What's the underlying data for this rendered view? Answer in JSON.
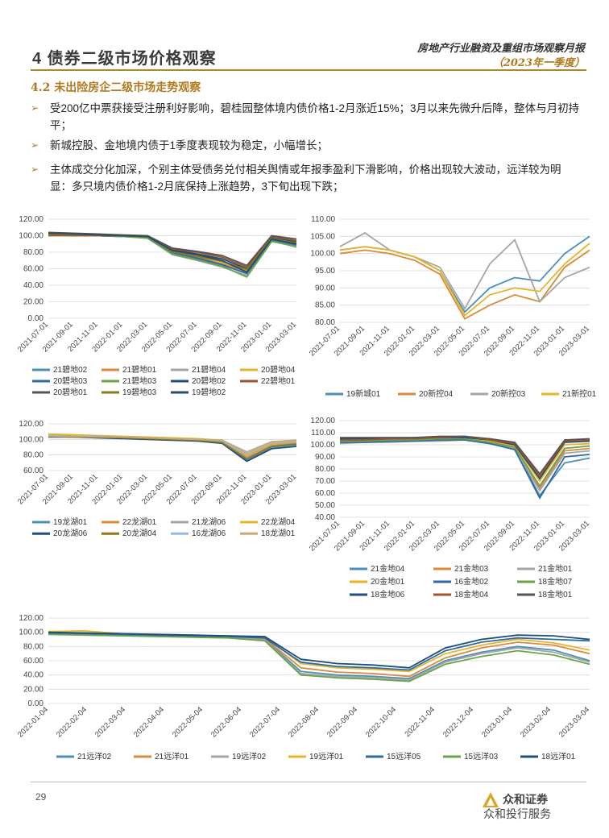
{
  "header": {
    "title": "4 债券二级市场价格观察",
    "right_line1": "房地产行业融资及重组市场观察月报",
    "right_line2": "（2023年一季度）"
  },
  "section": {
    "title": "4.2 未出险房企二级市场走势观察"
  },
  "bullets": [
    {
      "marker": "➢",
      "text": "受200亿中票获接受注册利好影响，碧桂园整体境内债价格1-2月涨近15%；3月以来先微升后降，整体与月初持平；"
    },
    {
      "marker": "➢",
      "text": "新城控股、金地境内债于1季度表现较为稳定，小幅增长；"
    },
    {
      "marker": "➢",
      "text": "主体成交分化加深，个别主体受债务兑付相关舆情或年报季盈利下滑影响，价格出现较大波动，远洋较为明显：多只境内债价格1-2月底保持上涨趋势，3下旬出现下跌；"
    }
  ],
  "footer": {
    "page": "29",
    "brand": "众和证券",
    "watermark": "众和投行服务"
  },
  "chart_data": [
    {
      "type": "line",
      "ylim": [
        0,
        120
      ],
      "yticks": [
        "120.00",
        "100.00",
        "80.00",
        "60.00",
        "40.00",
        "20.00",
        "0.00"
      ],
      "xticks": [
        "2021-07-01",
        "2021-09-01",
        "2021-11-01",
        "2022-01-01",
        "2022-03-01",
        "2022-05-01",
        "2022-07-01",
        "2022-09-01",
        "2022-11-01",
        "2023-01-01",
        "2023-03-01"
      ],
      "series": [
        {
          "name": "21碧地02",
          "color": "#4a90b8",
          "values": [
            101,
            100,
            100,
            99,
            98,
            78,
            72,
            64,
            55,
            95,
            88
          ]
        },
        {
          "name": "21碧地01",
          "color": "#d98a3a",
          "values": [
            102,
            101,
            101,
            100,
            98,
            80,
            74,
            66,
            57,
            96,
            90
          ]
        },
        {
          "name": "21碧地04",
          "color": "#a5a5a5",
          "values": [
            101,
            100,
            100,
            99,
            97,
            77,
            70,
            62,
            52,
            94,
            86
          ]
        },
        {
          "name": "20碧地04",
          "color": "#e6b428",
          "values": [
            103,
            102,
            101,
            100,
            99,
            82,
            76,
            68,
            58,
            97,
            92
          ]
        },
        {
          "name": "20碧地03",
          "color": "#2f6aa6",
          "values": [
            102,
            101,
            100,
            99,
            98,
            79,
            73,
            65,
            54,
            95,
            89
          ]
        },
        {
          "name": "21碧地03",
          "color": "#6aa34a",
          "values": [
            101,
            100,
            100,
            99,
            97,
            78,
            71,
            63,
            50,
            93,
            87
          ]
        },
        {
          "name": "20碧地02",
          "color": "#1f4e79",
          "values": [
            103,
            102,
            101,
            100,
            99,
            83,
            78,
            72,
            60,
            98,
            93
          ]
        },
        {
          "name": "22碧地01",
          "color": "#a0522d",
          "values": [
            100,
            100,
            100,
            100,
            99,
            84,
            80,
            74,
            62,
            99,
            94
          ]
        },
        {
          "name": "20碧地01",
          "color": "#555555",
          "values": [
            104,
            103,
            102,
            101,
            100,
            85,
            81,
            76,
            64,
            100,
            96
          ]
        },
        {
          "name": "19碧地03",
          "color": "#8a7a1a",
          "values": [
            102,
            101,
            101,
            100,
            99,
            81,
            75,
            69,
            59,
            97,
            91
          ]
        },
        {
          "name": "19碧地02",
          "color": "#2a4a6e",
          "values": [
            103,
            102,
            101,
            100,
            99,
            82,
            77,
            70,
            56,
            96,
            90
          ]
        }
      ]
    },
    {
      "type": "line",
      "ylim": [
        80,
        110
      ],
      "yticks": [
        "110.00",
        "105.00",
        "100.00",
        "95.00",
        "90.00",
        "85.00",
        "80.00"
      ],
      "xticks": [
        "2021-07-01",
        "2021-09-01",
        "2021-11-01",
        "2022-01-01",
        "2022-03-01",
        "2022-05-01",
        "2022-07-01",
        "2022-09-01",
        "2022-11-01",
        "2023-01-01",
        "2023-03-01"
      ],
      "series": [
        {
          "name": "19新城01",
          "color": "#4a90b8",
          "values": [
            101,
            102,
            101,
            99,
            95,
            83,
            90,
            93,
            92,
            100,
            105
          ]
        },
        {
          "name": "20新控04",
          "color": "#d98a3a",
          "values": [
            100,
            101,
            100,
            98,
            94,
            81,
            85,
            88,
            86,
            96,
            101
          ]
        },
        {
          "name": "20新控03",
          "color": "#a5a5a5",
          "values": [
            102,
            106,
            101,
            99,
            96,
            84,
            97,
            104,
            86,
            93,
            96
          ]
        },
        {
          "name": "21新控01",
          "color": "#e6b428",
          "values": [
            101,
            102,
            101,
            99,
            95,
            82,
            88,
            90,
            89,
            97,
            103
          ]
        }
      ]
    },
    {
      "type": "line",
      "ylim": [
        60,
        120
      ],
      "yticks": [
        "120.00",
        "100.00",
        "80.00",
        "60.00"
      ],
      "xticks": [
        "2021-07-01",
        "2021-09-01",
        "2021-11-01",
        "2022-01-01",
        "2022-03-01",
        "2022-05-01",
        "2022-07-01",
        "2022-09-01",
        "2022-11-01",
        "2023-01-01",
        "2023-03-01"
      ],
      "series": [
        {
          "name": "19龙湖01",
          "color": "#4a90b8",
          "values": [
            105,
            104,
            103,
            102,
            101,
            100,
            99,
            97,
            74,
            90,
            93
          ]
        },
        {
          "name": "22龙湖01",
          "color": "#d98a3a",
          "values": [
            104,
            103,
            102,
            102,
            101,
            100,
            99,
            96,
            76,
            92,
            95
          ]
        },
        {
          "name": "21龙湖06",
          "color": "#a5a5a5",
          "values": [
            106,
            105,
            104,
            103,
            102,
            101,
            100,
            98,
            78,
            94,
            96
          ]
        },
        {
          "name": "22龙湖04",
          "color": "#e6b428",
          "values": [
            107,
            106,
            105,
            104,
            103,
            102,
            101,
            99,
            80,
            95,
            97
          ]
        },
        {
          "name": "20龙湖06",
          "color": "#1f4e79",
          "values": [
            103,
            103,
            102,
            101,
            100,
            99,
            98,
            95,
            72,
            88,
            91
          ]
        },
        {
          "name": "20龙湖04",
          "color": "#8a7a1a",
          "values": [
            104,
            103,
            103,
            102,
            101,
            100,
            99,
            96,
            75,
            91,
            94
          ]
        },
        {
          "name": "16龙湖06",
          "color": "#9ab8d8",
          "values": [
            105,
            104,
            104,
            103,
            102,
            101,
            100,
            98,
            82,
            96,
            98
          ]
        },
        {
          "name": "18龙湖01",
          "color": "#c8a878",
          "values": [
            104,
            104,
            103,
            103,
            102,
            101,
            100,
            99,
            84,
            97,
            99
          ]
        }
      ]
    },
    {
      "type": "line",
      "ylim": [
        40,
        120
      ],
      "yticks": [
        "120.00",
        "110.00",
        "100.00",
        "90.00",
        "80.00",
        "70.00",
        "60.00",
        "50.00",
        "40.00"
      ],
      "xticks": [
        "2021-07-01",
        "2021-09-01",
        "2021-11-01",
        "2022-01-01",
        "2022-03-01",
        "2022-05-01",
        "2022-07-01",
        "2022-09-01",
        "2022-11-01",
        "2023-01-01",
        "2023-03-01"
      ],
      "series": [
        {
          "name": "21金地04",
          "color": "#4a90b8",
          "values": [
            103,
            103,
            103,
            103,
            104,
            104,
            101,
            97,
            58,
            85,
            89
          ]
        },
        {
          "name": "21金地03",
          "color": "#d98a3a",
          "values": [
            102,
            103,
            103,
            104,
            104,
            105,
            102,
            98,
            64,
            95,
            97
          ]
        },
        {
          "name": "21金地01",
          "color": "#a5a5a5",
          "values": [
            101,
            102,
            102,
            103,
            103,
            104,
            101,
            97,
            62,
            93,
            95
          ]
        },
        {
          "name": "20金地01",
          "color": "#e6b428",
          "values": [
            104,
            104,
            104,
            105,
            105,
            105,
            103,
            99,
            70,
            100,
            101
          ]
        },
        {
          "name": "16金地02",
          "color": "#2f6aa6",
          "values": [
            102,
            102,
            103,
            103,
            104,
            104,
            101,
            96,
            56,
            90,
            92
          ]
        },
        {
          "name": "18金地07",
          "color": "#6aa34a",
          "values": [
            103,
            103,
            104,
            104,
            105,
            105,
            102,
            98,
            66,
            97,
            99
          ]
        },
        {
          "name": "18金地06",
          "color": "#1f4e79",
          "values": [
            105,
            105,
            105,
            106,
            106,
            106,
            104,
            100,
            72,
            102,
            103
          ]
        },
        {
          "name": "18金地04",
          "color": "#a0522d",
          "values": [
            104,
            104,
            105,
            105,
            106,
            107,
            104,
            101,
            74,
            103,
            104
          ]
        },
        {
          "name": "18金地01",
          "color": "#555555",
          "values": [
            106,
            106,
            106,
            106,
            107,
            107,
            105,
            102,
            76,
            104,
            105
          ]
        }
      ]
    },
    {
      "type": "line",
      "ylim": [
        0,
        120
      ],
      "yticks": [
        "120.00",
        "100.00",
        "80.00",
        "60.00",
        "40.00",
        "20.00",
        "0.00"
      ],
      "xticks": [
        "2022-01-04",
        "2022-02-04",
        "2022-03-04",
        "2022-04-04",
        "2022-05-04",
        "2022-06-04",
        "2022-07-04",
        "2022-08-04",
        "2022-09-04",
        "2022-10-04",
        "2022-11-04",
        "2022-12-04",
        "2023-01-04",
        "2023-02-04",
        "2023-03-04"
      ],
      "series": [
        {
          "name": "21远洋02",
          "color": "#4a90b8",
          "values": [
            98,
            97,
            96,
            95,
            94,
            93,
            90,
            45,
            40,
            38,
            35,
            60,
            72,
            80,
            75,
            60
          ]
        },
        {
          "name": "21远洋01",
          "color": "#d98a3a",
          "values": [
            99,
            98,
            97,
            96,
            95,
            94,
            91,
            50,
            44,
            42,
            38,
            64,
            78,
            86,
            82,
            70
          ]
        },
        {
          "name": "19远洋02",
          "color": "#a5a5a5",
          "values": [
            98,
            97,
            96,
            95,
            94,
            93,
            89,
            42,
            38,
            36,
            33,
            58,
            70,
            78,
            72,
            58
          ]
        },
        {
          "name": "19远洋01",
          "color": "#e6b428",
          "values": [
            101,
            102,
            98,
            97,
            96,
            95,
            93,
            56,
            50,
            48,
            45,
            70,
            82,
            90,
            85,
            75
          ]
        },
        {
          "name": "15远洋05",
          "color": "#2f6aa6",
          "values": [
            99,
            98,
            97,
            96,
            95,
            94,
            92,
            58,
            52,
            50,
            47,
            74,
            86,
            92,
            90,
            88
          ]
        },
        {
          "name": "15远洋03",
          "color": "#6aa34a",
          "values": [
            97,
            96,
            95,
            94,
            93,
            92,
            88,
            40,
            36,
            34,
            31,
            55,
            66,
            74,
            68,
            55
          ]
        },
        {
          "name": "18远洋01",
          "color": "#1f4e79",
          "values": [
            100,
            99,
            98,
            97,
            96,
            95,
            94,
            62,
            56,
            54,
            50,
            78,
            90,
            96,
            95,
            90
          ]
        }
      ]
    }
  ]
}
